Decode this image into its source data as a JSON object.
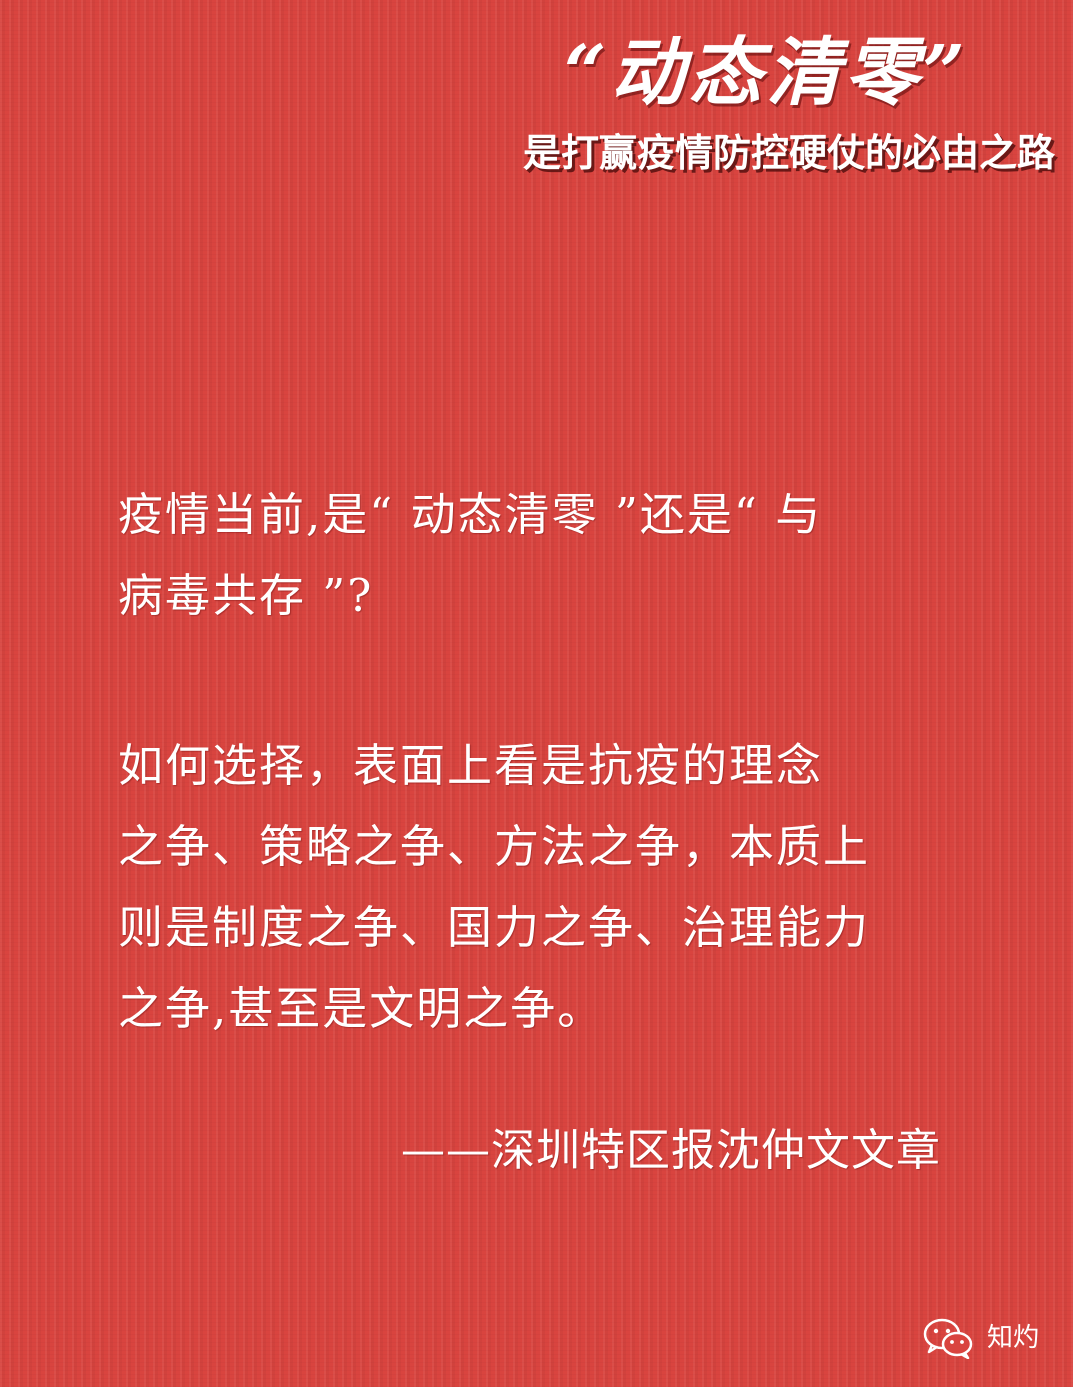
{
  "header": {
    "title": "“动态清零”",
    "subtitle": "是打赢疫情防控硬仗的必由之路"
  },
  "body": {
    "question_lines": [
      "疫情当前,是“ 动态清零 ”还是“ 与",
      "病毒共存 ”?"
    ],
    "analysis_lines": [
      "如何选择，表面上看是抗疫的理念",
      "之争、策略之争、方法之争，本质上",
      "则是制度之争、国力之争、治理能力",
      "之争,甚至是文明之争。"
    ]
  },
  "attribution": "——深圳特区报沈仲文文章",
  "watermark": {
    "icon": "wechat-icon",
    "label": "知灼"
  },
  "colors": {
    "background": "#d9443f",
    "text": "#ffffff"
  }
}
